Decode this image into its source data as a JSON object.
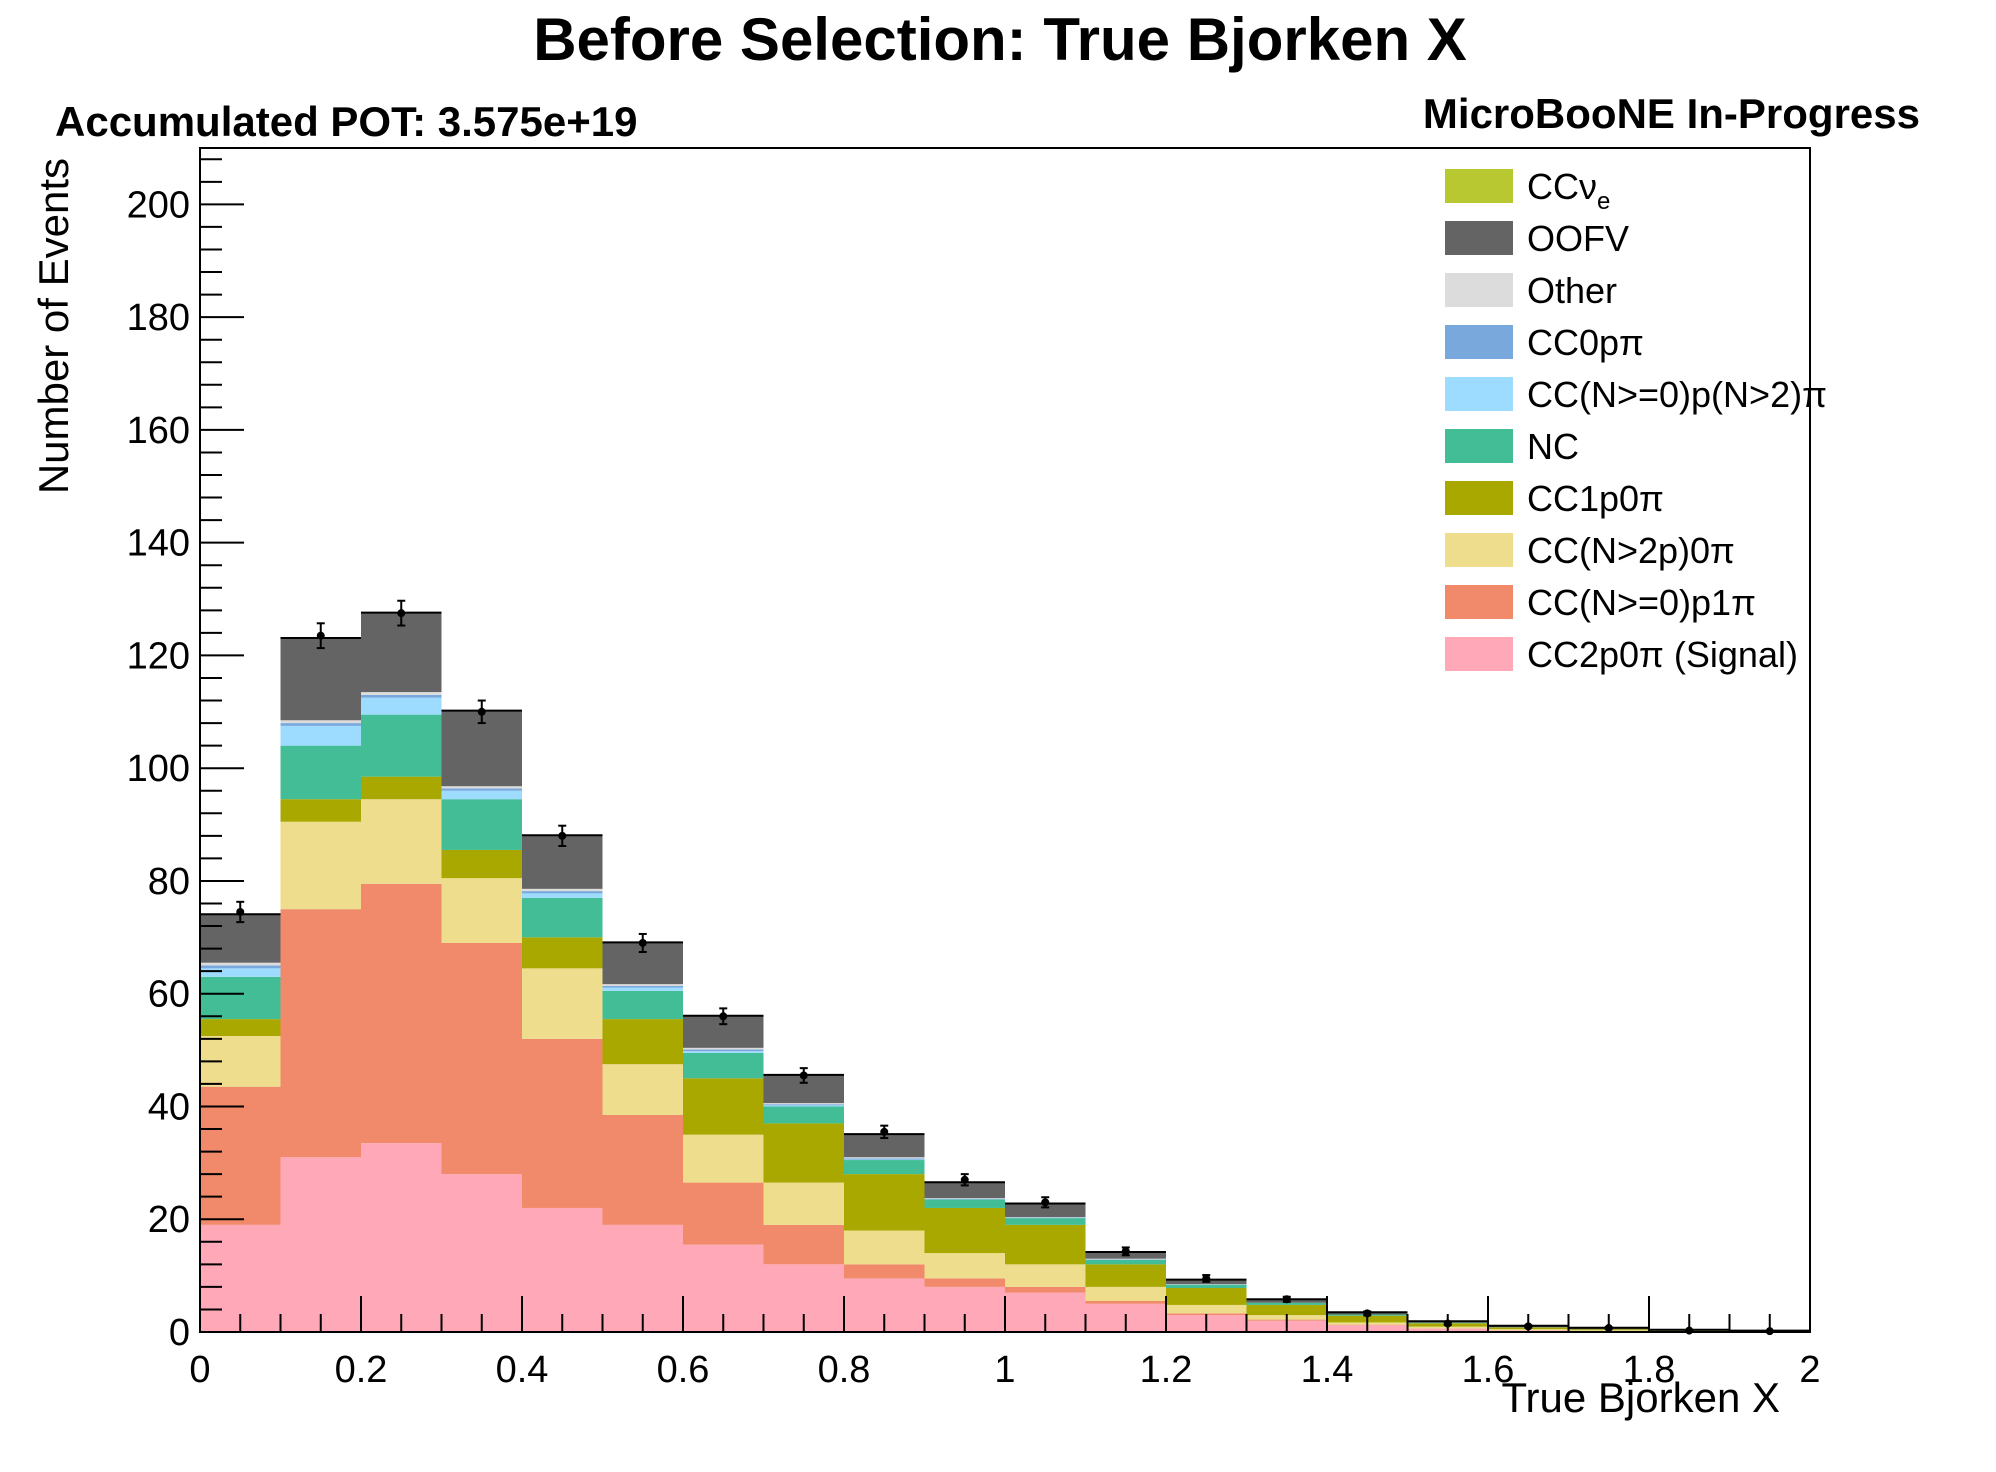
{
  "chart_data": {
    "type": "bar",
    "title": "Before Selection: True Bjorken X",
    "pot_text": "Accumulated POT: 3.575e+19",
    "label_text": "MicroBooNE In-Progress",
    "xlabel": "True Bjorken X",
    "ylabel": "Number of Events",
    "xlim": [
      0,
      2
    ],
    "ylim": [
      0,
      210
    ],
    "x_ticks": [
      "0",
      "0.2",
      "0.4",
      "0.6",
      "0.8",
      "1",
      "1.2",
      "1.4",
      "1.6",
      "1.8",
      "2"
    ],
    "y_ticks": [
      "0",
      "20",
      "40",
      "60",
      "80",
      "100",
      "120",
      "140",
      "160",
      "180",
      "200"
    ],
    "bin_edges": [
      0,
      0.1,
      0.2,
      0.3,
      0.4,
      0.5,
      0.6,
      0.7,
      0.8,
      0.9,
      1.0,
      1.1,
      1.2,
      1.3,
      1.4,
      1.5,
      1.6,
      1.7,
      1.8,
      1.9,
      2.0
    ],
    "series": [
      {
        "name": "CC2p0π (Signal)",
        "color": "#ffa9b8",
        "values": [
          19,
          31,
          33.5,
          28,
          22,
          19,
          15.5,
          12,
          9.5,
          8,
          7,
          5,
          3,
          2,
          1.2,
          0.6,
          0.3,
          0.2,
          0.1,
          0.05
        ]
      },
      {
        "name": "CC(N>=0)p1π",
        "color": "#f08a6b",
        "values": [
          24.5,
          44,
          46,
          41,
          30,
          19.5,
          11,
          7,
          2.5,
          1.5,
          1,
          0.5,
          0.3,
          0.2,
          0.1,
          0.05,
          0,
          0,
          0,
          0
        ]
      },
      {
        "name": "CC(N>2p)0π",
        "color": "#eddd8c",
        "values": [
          9,
          15.5,
          15,
          11.5,
          12.5,
          9,
          8.5,
          7.5,
          6,
          4.5,
          4,
          2.5,
          1.5,
          0.8,
          0.4,
          0.3,
          0.2,
          0.1,
          0.05,
          0
        ]
      },
      {
        "name": "CC1p0π",
        "color": "#a8a800",
        "values": [
          3,
          4,
          4,
          5,
          5.5,
          8,
          10,
          10.5,
          10,
          8,
          7,
          4,
          3,
          1.8,
          1.2,
          0.6,
          0.3,
          0.2,
          0.1,
          0.05
        ]
      },
      {
        "name": "NC",
        "color": "#42bd96",
        "values": [
          7.5,
          9.5,
          11,
          9,
          7,
          5,
          4.5,
          3,
          2.5,
          1.5,
          1.2,
          0.8,
          0.6,
          0.4,
          0.2,
          0.1,
          0.05,
          0,
          0,
          0
        ]
      },
      {
        "name": "CC(N>=0)p(N>2)π",
        "color": "#9edcff",
        "values": [
          1.5,
          3.5,
          3,
          1.5,
          0.8,
          0.6,
          0.3,
          0.2,
          0.1,
          0.05,
          0,
          0,
          0,
          0,
          0,
          0,
          0,
          0,
          0,
          0
        ]
      },
      {
        "name": "CC0pπ",
        "color": "#78a8dc",
        "values": [
          0.5,
          0.5,
          0.5,
          0.4,
          0.4,
          0.3,
          0.3,
          0.2,
          0.2,
          0.1,
          0.1,
          0.1,
          0.05,
          0,
          0,
          0,
          0,
          0,
          0,
          0
        ]
      },
      {
        "name": "Other",
        "color": "#dcdcdc",
        "values": [
          0.5,
          0.5,
          0.5,
          0.4,
          0.4,
          0.3,
          0.3,
          0.2,
          0.2,
          0.1,
          0.1,
          0.1,
          0.05,
          0,
          0,
          0,
          0,
          0,
          0,
          0
        ]
      },
      {
        "name": "OOFV",
        "color": "#646464",
        "values": [
          8.5,
          14.5,
          14,
          13.3,
          9.4,
          7.3,
          5.6,
          4.9,
          4,
          2.7,
          2.3,
          1.1,
          0.7,
          0.5,
          0.3,
          0.15,
          0.15,
          0.15,
          0.05,
          0.05
        ]
      },
      {
        "name": "CCν",
        "name_sub": "e",
        "color": "#b8c831",
        "values": [
          0.1,
          0.1,
          0.1,
          0.1,
          0.1,
          0.1,
          0.1,
          0.1,
          0.1,
          0.1,
          0.1,
          0.1,
          0.1,
          0.1,
          0.1,
          0.1,
          0.1,
          0.1,
          0.1,
          0.1
        ]
      }
    ],
    "data_points": [
      74.5,
      123.5,
      127.5,
      110,
      88,
      69,
      56,
      45.5,
      35.5,
      27,
      23,
      14.3,
      9.5,
      5.8,
      3.3,
      1.5,
      1.0,
      0.7,
      0.25,
      0.15
    ],
    "data_errors": [
      1.8,
      2.2,
      2.2,
      2.0,
      1.8,
      1.6,
      1.4,
      1.3,
      1.1,
      1.0,
      0.9,
      0.7,
      0.6,
      0.45,
      0.35,
      0.25,
      0.2,
      0.15,
      0.1,
      0.08
    ],
    "legend_order": [
      "CCν",
      "OOFV",
      "Other",
      "CC0pπ",
      "CC(N>=0)p(N>2)π",
      "NC",
      "CC1p0π",
      "CC(N>2p)0π",
      "CC(N>=0)p1π",
      "CC2p0π (Signal)"
    ],
    "legend_position": "top-right"
  }
}
